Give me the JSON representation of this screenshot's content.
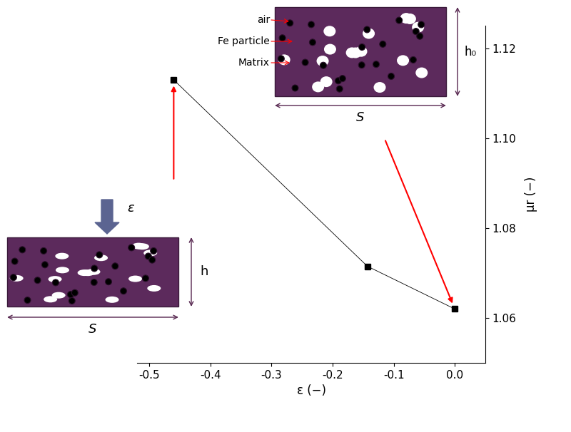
{
  "chart_data": {
    "type": "line",
    "x": [
      -0.46,
      -0.143,
      0.0
    ],
    "values": [
      1.113,
      1.0715,
      1.062
    ],
    "color": "#000000",
    "marker": "square",
    "line_style": "solid",
    "x_label": "ε (−)",
    "y_label": "μr (−)",
    "xlim": [
      -0.52,
      0.05
    ],
    "xticks": [
      -0.5,
      -0.4,
      -0.3,
      -0.2,
      -0.1,
      0.0
    ],
    "ylim": [
      1.05,
      1.125
    ],
    "yticks": [
      1.06,
      1.08,
      {
        "value": 1.1,
        "label": "1.10"
      },
      1.12
    ],
    "grid": false,
    "annotations": {
      "components": [
        "air",
        "Fe particle",
        "Matrix"
      ],
      "initial_height": "h₀",
      "width": "S",
      "strain": "ε",
      "compressed_height": "h"
    }
  }
}
